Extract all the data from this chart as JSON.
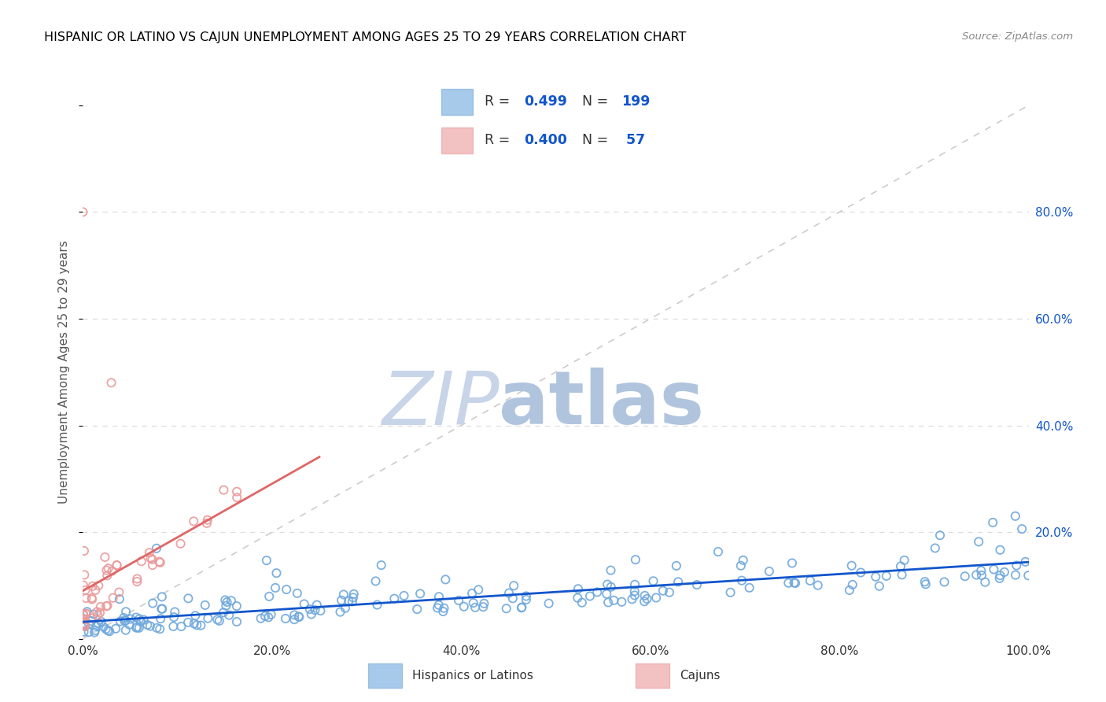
{
  "title": "HISPANIC OR LATINO VS CAJUN UNEMPLOYMENT AMONG AGES 25 TO 29 YEARS CORRELATION CHART",
  "source_text": "Source: ZipAtlas.com",
  "ylabel": "Unemployment Among Ages 25 to 29 years",
  "xlim": [
    0.0,
    1.0
  ],
  "ylim": [
    0.0,
    1.0
  ],
  "x_tick_labels": [
    "0.0%",
    "20.0%",
    "40.0%",
    "60.0%",
    "80.0%",
    "100.0%"
  ],
  "y_right_tick_labels": [
    "20.0%",
    "40.0%",
    "60.0%",
    "80.0%"
  ],
  "blue_color": "#6fa8dc",
  "pink_color": "#ea9999",
  "blue_line_color": "#1155cc",
  "pink_line_color": "#e06666",
  "diag_line_color": "#cccccc",
  "watermark_zip_color": "#c0c8d8",
  "watermark_atlas_color": "#b8c8e8",
  "background_color": "#ffffff",
  "grid_color": "#dddddd",
  "title_color": "#000000",
  "axis_label_color": "#555555",
  "tick_label_color_blue": "#1155cc",
  "tick_label_color_black": "#333333",
  "legend_box_color": "#ffffff",
  "legend_border_color": "#cccccc"
}
